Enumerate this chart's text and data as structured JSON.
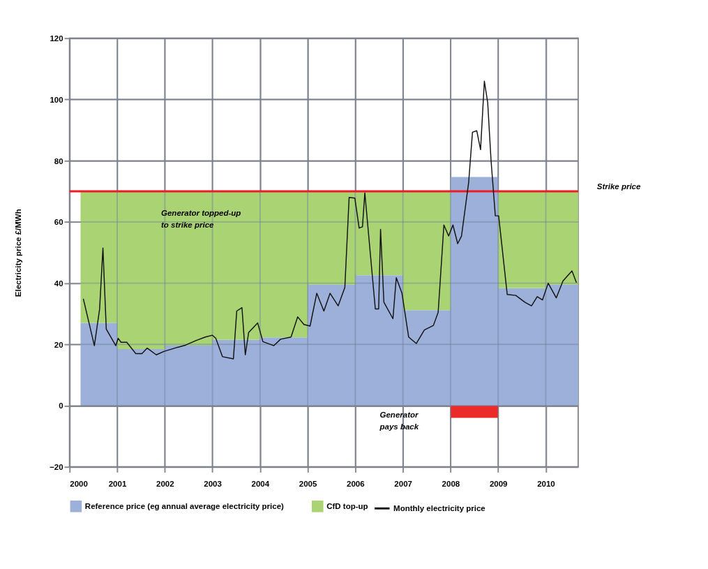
{
  "chart_data": {
    "type": "area",
    "stacked": true,
    "ylabel": "Electricity price £/MWh",
    "x": [
      2000.23,
      2001,
      2001,
      2002,
      2002,
      2003,
      2003,
      2004,
      2004,
      2005,
      2005,
      2006,
      2006,
      2007,
      2007,
      2008,
      2008,
      2009,
      2009,
      2010,
      2010,
      2010.68
    ],
    "series": [
      {
        "name": "Reference price (eg annual average electricity price)",
        "color": "#9db0d9",
        "values": [
          27,
          27,
          18.5,
          18.5,
          19.6,
          19.6,
          21.5,
          21.5,
          22.3,
          22.3,
          39.5,
          39.5,
          42.6,
          42.6,
          31.2,
          31.2,
          74.7,
          74.7,
          38.4,
          38.4,
          39.5,
          39.5
        ]
      },
      {
        "name": "CfD top-up",
        "color": "#aad374",
        "values": [
          43,
          43,
          51.5,
          51.5,
          50.4,
          50.4,
          48.5,
          48.5,
          47.7,
          47.7,
          30.5,
          30.5,
          27.4,
          27.4,
          38.8,
          38.8,
          0,
          0,
          31.6,
          31.6,
          30.5,
          30.5
        ]
      },
      {
        "type": "bar",
        "color": "#ec2a2a",
        "x": [
          2008.5
        ],
        "values": [
          -4
        ]
      },
      {
        "name": "Monthly electricity price",
        "type": "line",
        "color": "#111111",
        "x": [
          2000.29,
          2000.52,
          2000.63,
          2000.7,
          2000.77,
          2000.97,
          2001.02,
          2001.08,
          2001.2,
          2001.39,
          2001.52,
          2001.63,
          2001.82,
          2001.98,
          2002.21,
          2002.44,
          2002.66,
          2002.85,
          2003.0,
          2003.07,
          2003.21,
          2003.44,
          2003.51,
          2003.62,
          2003.69,
          2003.76,
          2003.95,
          2004.06,
          2004.29,
          2004.43,
          2004.65,
          2004.79,
          2004.92,
          2005.05,
          2005.19,
          2005.34,
          2005.47,
          2005.64,
          2005.78,
          2005.87,
          2005.99,
          2006.08,
          2006.15,
          2006.2,
          2006.42,
          2006.49,
          2006.53,
          2006.6,
          2006.79,
          2006.86,
          2006.98,
          2007.12,
          2007.28,
          2007.45,
          2007.64,
          2007.74,
          2007.86,
          2007.96,
          2008.05,
          2008.15,
          2008.23,
          2008.38,
          2008.46,
          2008.55,
          2008.63,
          2008.71,
          2008.78,
          2008.85,
          2008.94,
          2009.01,
          2009.19,
          2009.37,
          2009.56,
          2009.7,
          2009.82,
          2009.93,
          2010.05,
          2010.22,
          2010.36,
          2010.55,
          2010.64
        ],
        "values": [
          34.8,
          19.6,
          31.5,
          51.5,
          25,
          19.6,
          22,
          20.7,
          20.7,
          17,
          17,
          18.8,
          16.6,
          17.7,
          18.8,
          19.8,
          21.3,
          22.4,
          23,
          22,
          16,
          15.3,
          30.9,
          32,
          16.6,
          23.9,
          27,
          20.9,
          19.6,
          21.7,
          22.4,
          29,
          26.5,
          26,
          36.7,
          30.9,
          36.7,
          32.6,
          38.6,
          68,
          67.8,
          58,
          58.4,
          69.5,
          31.6,
          31.6,
          57.6,
          33.8,
          28.4,
          41.8,
          36.7,
          22.4,
          20.3,
          24.7,
          26.2,
          30.5,
          59,
          55.4,
          59,
          52.9,
          55.4,
          72.9,
          89.3,
          89.8,
          83.6,
          106,
          99,
          80.2,
          62,
          62,
          36.3,
          36,
          33.8,
          32.6,
          35.6,
          34.5,
          40,
          35.2,
          40.7,
          44,
          40.3
        ]
      }
    ],
    "xlim": [
      2000,
      2010.68
    ],
    "xticks": [
      2000,
      2001,
      2002,
      2003,
      2004,
      2005,
      2006,
      2007,
      2008,
      2009,
      2010
    ],
    "ylim": [
      -20,
      120
    ],
    "yticks": [
      -20,
      0,
      20,
      40,
      60,
      80,
      100,
      120
    ],
    "ref_lines": [
      {
        "axis": "y",
        "value": 70,
        "label": "Strike price",
        "color": "#ee1c25"
      }
    ],
    "annotations": [
      "Generator topped-up\nto strike price",
      "Generator\npays back"
    ],
    "grid": true,
    "legend": "bottom"
  }
}
